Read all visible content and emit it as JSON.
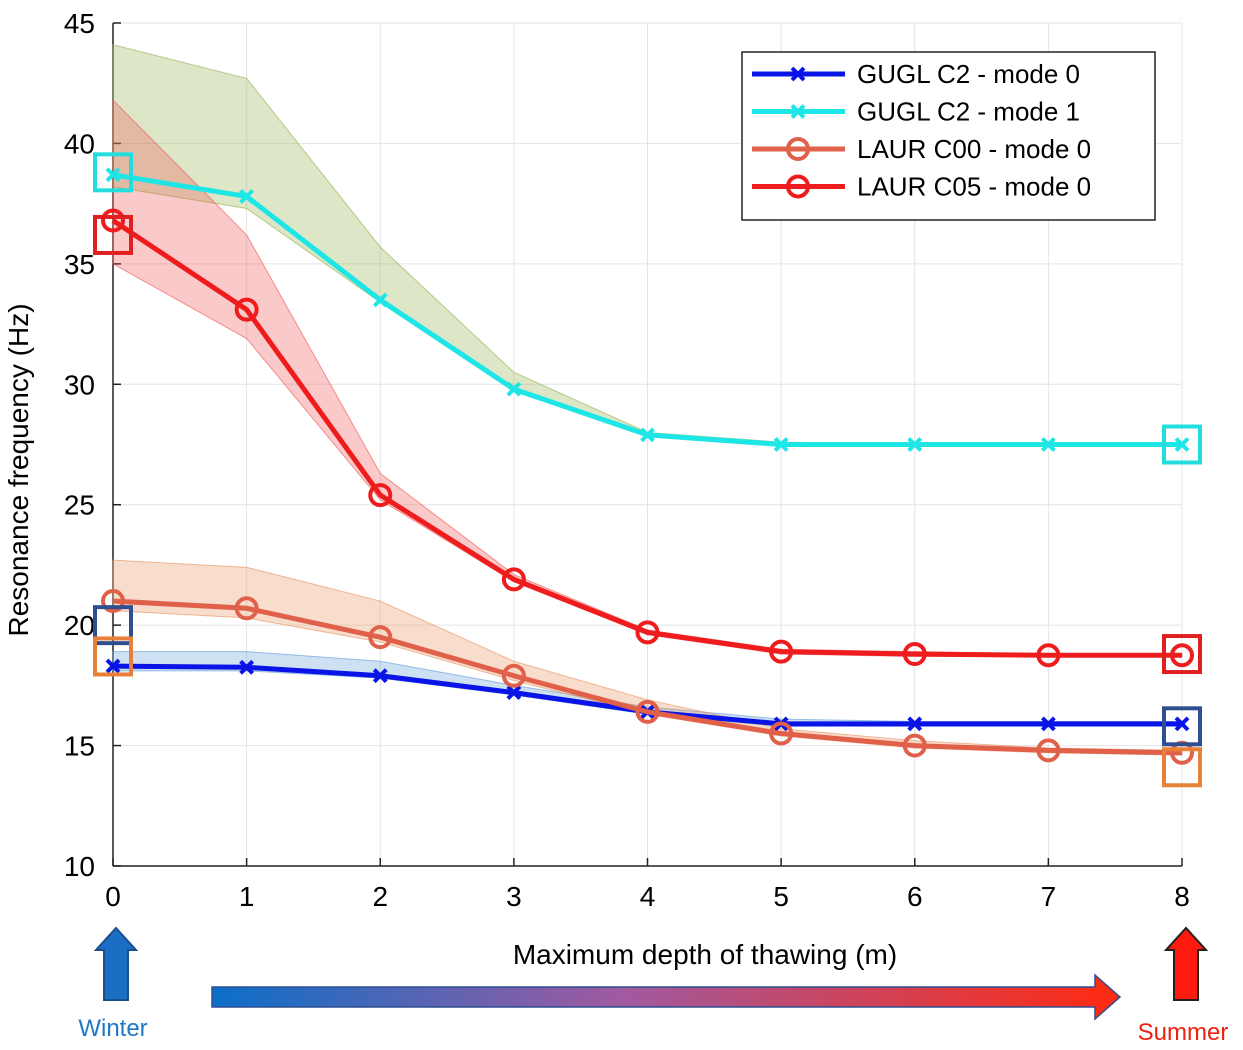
{
  "chart_data": {
    "type": "line",
    "y_label": "Resonance frequency (Hz)",
    "x_label": "Maximum depth of thawing (m)",
    "x": [
      0,
      1,
      2,
      3,
      4,
      5,
      6,
      7,
      8
    ],
    "xlim": [
      0,
      8
    ],
    "xticks": [
      0,
      1,
      2,
      3,
      4,
      5,
      6,
      7,
      8
    ],
    "ylim": [
      10,
      45
    ],
    "yticks": [
      10,
      15,
      20,
      25,
      30,
      35,
      40,
      45
    ],
    "grid": true,
    "legend": "upper right",
    "series": [
      {
        "name": "GUGL C2 - mode 0",
        "color": "#0a14e6",
        "marker": "x",
        "band_color": "#5b9bd5",
        "values": [
          18.3,
          18.25,
          17.9,
          17.2,
          16.4,
          15.9,
          15.9,
          15.9,
          15.9
        ],
        "band_upper": [
          18.9,
          18.9,
          18.5,
          17.5,
          16.6,
          16.1,
          16.0,
          16.0,
          16.0
        ],
        "band_lower": [
          18.1,
          18.1,
          17.8,
          17.1,
          16.3,
          15.8,
          15.8,
          15.8,
          15.8
        ]
      },
      {
        "name": "GUGL C2 - mode 1",
        "color": "#1ee6e6",
        "marker": "x",
        "band_color": "#8db04a",
        "values": [
          38.7,
          37.8,
          33.5,
          29.8,
          27.9,
          27.5,
          27.5,
          27.5,
          27.5
        ],
        "band_upper": [
          44.1,
          42.7,
          35.7,
          30.5,
          28.0,
          27.6,
          27.5,
          27.5,
          27.5
        ],
        "band_lower": [
          38.2,
          37.3,
          33.4,
          29.7,
          27.9,
          27.5,
          27.5,
          27.5,
          27.5
        ]
      },
      {
        "name": "LAUR C00 - mode 0",
        "color": "#e0604a",
        "marker": "o",
        "band_color": "#e8905a",
        "values": [
          21.0,
          20.7,
          19.5,
          17.9,
          16.4,
          15.5,
          15.0,
          14.8,
          14.7
        ],
        "band_upper": [
          22.7,
          22.4,
          21.0,
          18.5,
          16.9,
          15.7,
          15.2,
          14.9,
          14.8
        ],
        "band_lower": [
          20.6,
          20.3,
          19.3,
          17.7,
          16.3,
          15.4,
          14.9,
          14.7,
          14.6
        ]
      },
      {
        "name": "LAUR C05 - mode 0",
        "color": "#ee1c1c",
        "marker": "o",
        "band_color": "#f05050",
        "values": [
          36.8,
          33.1,
          25.4,
          21.9,
          19.7,
          18.9,
          18.8,
          18.75,
          18.75
        ],
        "band_upper": [
          41.8,
          36.2,
          26.3,
          22.1,
          19.8,
          19.0,
          18.9,
          18.8,
          18.8
        ],
        "band_lower": [
          35.0,
          31.9,
          25.2,
          21.8,
          19.6,
          18.8,
          18.7,
          18.7,
          18.7
        ]
      }
    ],
    "observed": [
      {
        "x": 0,
        "y": 38.8,
        "color": "#22dddd"
      },
      {
        "x": 0,
        "y": 36.2,
        "color": "#e02020"
      },
      {
        "x": 0,
        "y": 20.0,
        "color": "#2e4f8f"
      },
      {
        "x": 0,
        "y": 18.7,
        "color": "#e8803a"
      },
      {
        "x": 8,
        "y": 27.5,
        "color": "#22dddd"
      },
      {
        "x": 8,
        "y": 18.8,
        "color": "#e02020"
      },
      {
        "x": 8,
        "y": 15.8,
        "color": "#2e4f8f"
      },
      {
        "x": 8,
        "y": 14.1,
        "color": "#e8803a"
      }
    ],
    "start_label": "Winter",
    "end_label": "Summer"
  }
}
